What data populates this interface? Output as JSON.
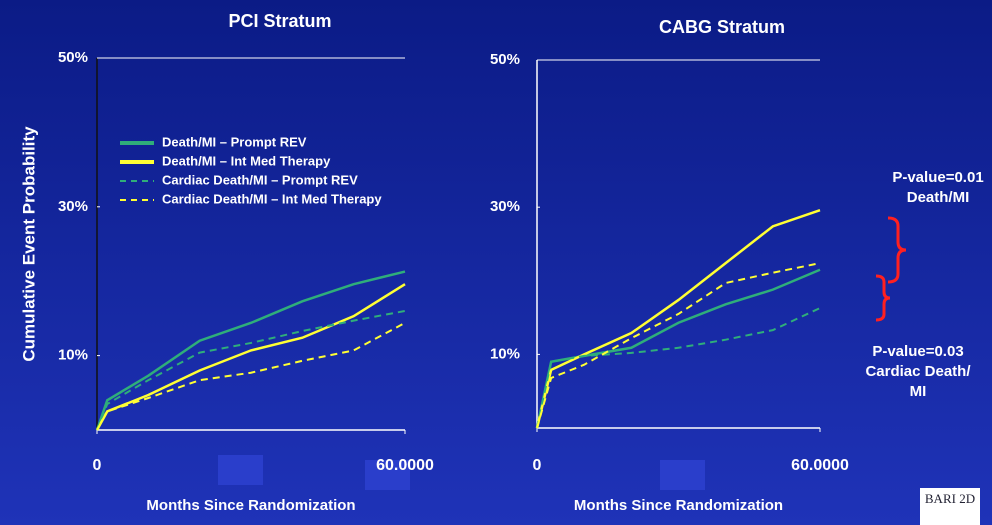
{
  "chart_data": [
    {
      "type": "line",
      "title": "PCI Stratum",
      "ylabel": "Cumulative Event Probability",
      "xlabel": "Months Since Randomization",
      "x": [
        0,
        2,
        10,
        20,
        30,
        40,
        50,
        60
      ],
      "xlim": [
        0,
        60
      ],
      "xticks": [
        0,
        {
          "value": 60,
          "label": "60.0000"
        }
      ],
      "ylim": [
        0,
        50
      ],
      "yticks": [
        {
          "value": 10,
          "label": "10%"
        },
        {
          "value": 30,
          "label": "30%"
        },
        {
          "value": 50,
          "label": "50%"
        }
      ],
      "legend": "upper left",
      "series": [
        {
          "name": "Death/MI – Prompt REV",
          "color": "#2fae7a",
          "dash": false,
          "values": [
            0,
            4,
            7.3,
            12,
            14.4,
            17.3,
            19.6,
            21.3
          ]
        },
        {
          "name": "Death/MI – Int Med Therapy",
          "color": "#ffff33",
          "dash": false,
          "values": [
            0,
            2.5,
            4.7,
            8,
            10.7,
            12.4,
            15.3,
            19.6
          ]
        },
        {
          "name": "Cardiac Death/MI – Prompt REV",
          "color": "#2fae7a",
          "dash": true,
          "values": [
            0,
            3.5,
            6.7,
            10.4,
            11.7,
            13.3,
            14.7,
            16
          ]
        },
        {
          "name": "Cardiac Death/MI – Int Med Therapy",
          "color": "#ffff33",
          "dash": true,
          "values": [
            0,
            2.5,
            4.3,
            6.7,
            7.7,
            9.3,
            10.7,
            14.4
          ]
        }
      ]
    },
    {
      "type": "line",
      "title": "CABG Stratum",
      "xlabel": "Months Since Randomization",
      "x": [
        0,
        3,
        10,
        20,
        30,
        40,
        50,
        60
      ],
      "xlim": [
        0,
        60
      ],
      "xticks": [
        0,
        {
          "value": 60,
          "label": "60.0000"
        }
      ],
      "ylim": [
        0,
        50
      ],
      "yticks": [
        {
          "value": 10,
          "label": "10%"
        },
        {
          "value": 30,
          "label": "30%"
        },
        {
          "value": 50,
          "label": "50%"
        }
      ],
      "series": [
        {
          "name": "Death/MI – Prompt REV",
          "color": "#2fae7a",
          "dash": false,
          "values": [
            0,
            9,
            9.8,
            10.9,
            14.3,
            16.8,
            18.8,
            21.5
          ]
        },
        {
          "name": "Death/MI – Int Med Therapy",
          "color": "#ffff33",
          "dash": false,
          "values": [
            0,
            7.9,
            10,
            12.9,
            17.4,
            22.4,
            27.4,
            29.6
          ]
        },
        {
          "name": "Cardiac Death/MI – Prompt REV",
          "color": "#2fae7a",
          "dash": true,
          "values": [
            0,
            9,
            9.8,
            10.2,
            10.9,
            12,
            13.3,
            16.3
          ]
        },
        {
          "name": "Cardiac Death/MI – Int Med Therapy",
          "color": "#ffff33",
          "dash": true,
          "values": [
            0,
            6.8,
            8.6,
            12.2,
            15.5,
            19.7,
            21.1,
            22.4
          ]
        }
      ]
    }
  ],
  "annotations": [
    {
      "lines": [
        "P-value=0.01",
        "Death/MI"
      ]
    },
    {
      "lines": [
        "P-value=0.03",
        "Cardiac Death/",
        "MI"
      ]
    }
  ],
  "logo": "BARI 2D"
}
